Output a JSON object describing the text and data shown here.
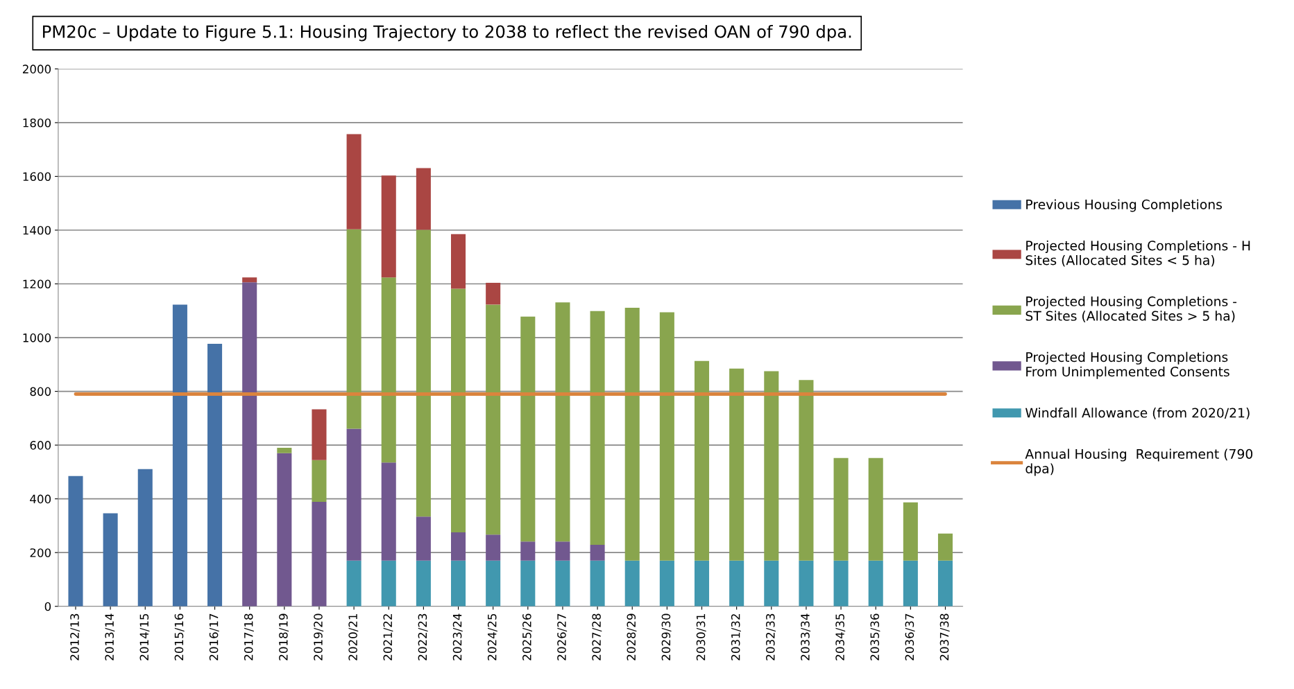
{
  "chart_data": {
    "type": "bar",
    "stacked": true,
    "title": "PM20c – Update to Figure 5.1: Housing Trajectory to 2038 to reflect the revised OAN of 790 dpa.",
    "categories": [
      "2012/13",
      "2013/14",
      "2014/15",
      "2015/16",
      "2016/17",
      "2017/18",
      "2018/19",
      "2019/20",
      "2020/21",
      "2021/22",
      "2022/23",
      "2023/24",
      "2024/25",
      "2025/26",
      "2026/27",
      "2027/28",
      "2028/29",
      "2029/30",
      "2030/31",
      "2031/32",
      "2032/33",
      "2033/34",
      "2034/35",
      "2035/36",
      "2036/37",
      "2037/38"
    ],
    "series": [
      {
        "name": "Previous Housing Completions",
        "color": "#4572a7",
        "values": [
          485,
          346,
          511,
          1123,
          977,
          null,
          null,
          null,
          null,
          null,
          null,
          null,
          null,
          null,
          null,
          null,
          null,
          null,
          null,
          null,
          null,
          null,
          null,
          null,
          null,
          null
        ]
      },
      {
        "name": "Windfall Allowance (from 2020/21)",
        "color": "#4198af",
        "values": [
          null,
          null,
          null,
          null,
          null,
          null,
          null,
          null,
          170,
          170,
          170,
          170,
          170,
          170,
          170,
          170,
          170,
          170,
          170,
          170,
          170,
          170,
          170,
          170,
          170,
          170
        ]
      },
      {
        "name": "Projected Housing Completions\nFrom Unimplemented Consents",
        "color": "#71588f",
        "values": [
          null,
          null,
          null,
          null,
          null,
          1206,
          570,
          389,
          491,
          365,
          164,
          105,
          97,
          71,
          71,
          59,
          null,
          null,
          null,
          null,
          null,
          null,
          null,
          null,
          null,
          null
        ]
      },
      {
        "name": "Projected Housing Completions -\nST Sites (Allocated Sites > 5 ha)",
        "color": "#89a54e",
        "values": [
          null,
          null,
          null,
          null,
          null,
          null,
          20,
          155,
          742,
          689,
          1067,
          907,
          856,
          837,
          890,
          870,
          941,
          924,
          743,
          715,
          705,
          672,
          382,
          382,
          217,
          101
        ]
      },
      {
        "name": "Projected Housing Completions - H\nSites (Allocated Sites < 5 ha)",
        "color": "#aa4643",
        "values": [
          null,
          null,
          null,
          null,
          null,
          18,
          null,
          189,
          354,
          379,
          230,
          203,
          81,
          null,
          null,
          null,
          null,
          null,
          null,
          null,
          null,
          null,
          null,
          null,
          null,
          null
        ]
      },
      {
        "name": "Annual Housing  Requirement (790\ndpa)",
        "type": "line",
        "color": "#db843d",
        "values": [
          790,
          790,
          790,
          790,
          790,
          790,
          790,
          790,
          790,
          790,
          790,
          790,
          790,
          790,
          790,
          790,
          790,
          790,
          790,
          790,
          790,
          790,
          790,
          790,
          790,
          790
        ]
      }
    ],
    "ylim": [
      0,
      2000
    ],
    "yticks": [
      0,
      200,
      400,
      600,
      800,
      1000,
      1200,
      1400,
      1600,
      1800,
      2000
    ],
    "grid": "y",
    "legend": "right"
  }
}
